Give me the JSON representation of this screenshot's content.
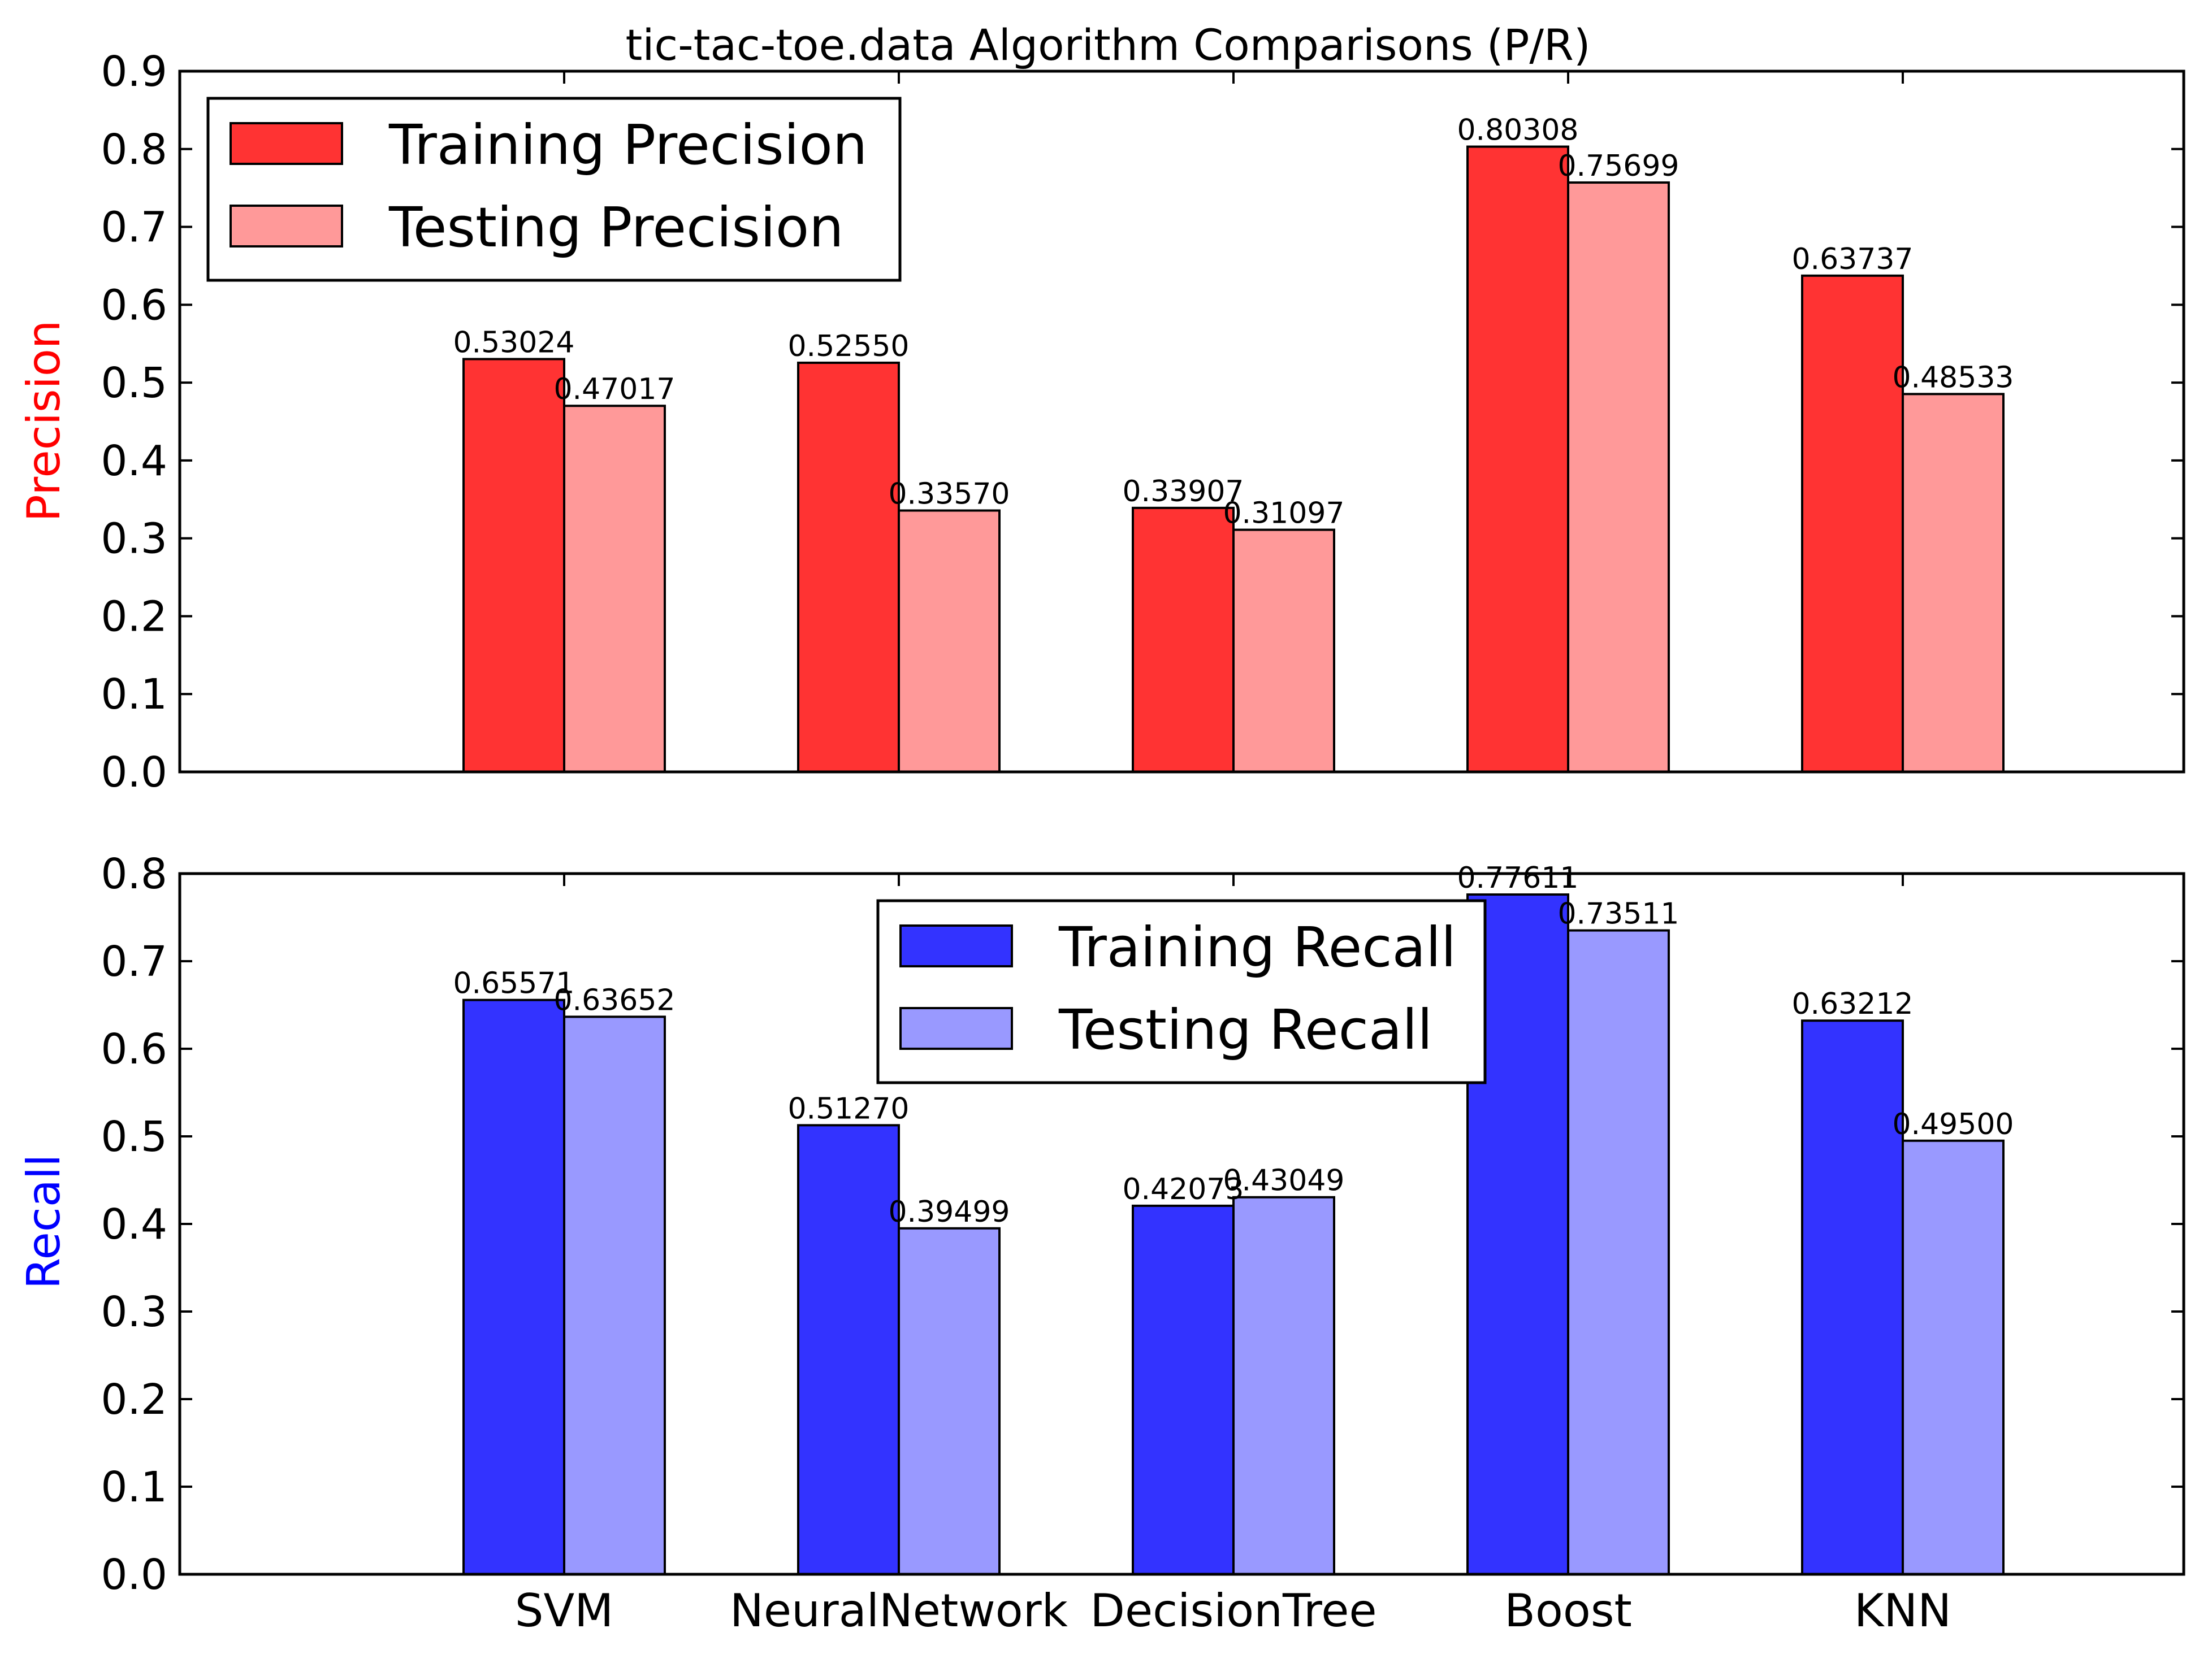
{
  "colors": {
    "training_precision": "#ff3333",
    "testing_precision": "#ff9999",
    "training_recall": "#3333ff",
    "testing_recall": "#9999ff",
    "precision_label": "#ff0000",
    "recall_label": "#0000ff"
  },
  "chart_data": [
    {
      "type": "bar",
      "title": "tic-tac-toe.data Algorithm Comparisons (P/R)",
      "xlabel": "",
      "ylabel": "Precision",
      "ylim": [
        0,
        0.9
      ],
      "yticks": [
        "0.0",
        "0.1",
        "0.2",
        "0.3",
        "0.4",
        "0.5",
        "0.6",
        "0.7",
        "0.8",
        "0.9"
      ],
      "categories": [
        "SVM",
        "NeuralNetwork",
        "DecisionTree",
        "Boost",
        "KNN"
      ],
      "show_category_labels": false,
      "grid": false,
      "legend_position": "upper-left",
      "series": [
        {
          "name": "Training Precision",
          "values": [
            0.53024,
            0.5255,
            0.33907,
            0.80308,
            0.63737
          ],
          "labels": [
            "0.53024",
            "0.52550",
            "0.33907",
            "0.80308",
            "0.63737"
          ]
        },
        {
          "name": "Testing Precision",
          "values": [
            0.47017,
            0.3357,
            0.31097,
            0.75699,
            0.48533
          ],
          "labels": [
            "0.47017",
            "0.33570",
            "0.31097",
            "0.75699",
            "0.48533"
          ]
        }
      ]
    },
    {
      "type": "bar",
      "title": "",
      "xlabel": "",
      "ylabel": "Recall",
      "ylim": [
        0,
        0.8
      ],
      "yticks": [
        "0.0",
        "0.1",
        "0.2",
        "0.3",
        "0.4",
        "0.5",
        "0.6",
        "0.7",
        "0.8"
      ],
      "categories": [
        "SVM",
        "NeuralNetwork",
        "DecisionTree",
        "Boost",
        "KNN"
      ],
      "show_category_labels": true,
      "grid": false,
      "legend_position": "upper-center",
      "series": [
        {
          "name": "Training Recall",
          "values": [
            0.65571,
            0.5127,
            0.42073,
            0.77611,
            0.63212
          ],
          "labels": [
            "0.65571",
            "0.51270",
            "0.42073",
            "0.77611",
            "0.63212"
          ]
        },
        {
          "name": "Testing Recall",
          "values": [
            0.63652,
            0.39499,
            0.43049,
            0.73511,
            0.495
          ],
          "labels": [
            "0.63652",
            "0.39499",
            "0.43049",
            "0.73511",
            "0.49500"
          ]
        }
      ]
    }
  ]
}
